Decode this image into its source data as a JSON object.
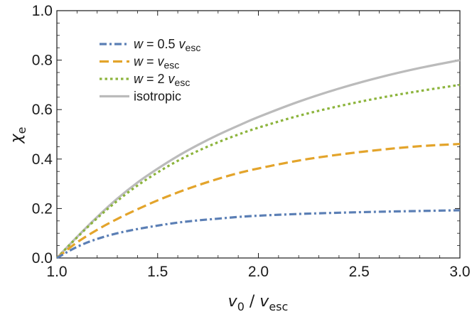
{
  "chart_data": {
    "type": "line",
    "xlabel": {
      "main": "v",
      "sub0": "0",
      "sep": " / ",
      "main2": "v",
      "sub2": "esc"
    },
    "ylabel": {
      "main": "χ",
      "sub": "e"
    },
    "xlim": [
      1.0,
      3.0
    ],
    "ylim": [
      0.0,
      1.0
    ],
    "xticks": [
      "1.0",
      "1.5",
      "2.0",
      "2.5",
      "3.0"
    ],
    "yticks": [
      "0.0",
      "0.2",
      "0.4",
      "0.6",
      "0.8",
      "1.0"
    ],
    "grid": false,
    "legend_position": "top-left",
    "series": [
      {
        "name": "w = 0.5 vesc",
        "legend": {
          "var": "w",
          "mid": " = 0.5 ",
          "v": "v",
          "sub": "esc"
        },
        "color": "#5b7fb5",
        "dash": "dashdot",
        "x": [
          1.0,
          1.1,
          1.2,
          1.3,
          1.4,
          1.5,
          1.6,
          1.7,
          1.8,
          1.9,
          2.0,
          2.2,
          2.4,
          2.6,
          2.8,
          3.0
        ],
        "y": [
          0.0,
          0.045,
          0.077,
          0.1,
          0.117,
          0.131,
          0.143,
          0.152,
          0.159,
          0.166,
          0.171,
          0.178,
          0.183,
          0.187,
          0.19,
          0.193
        ]
      },
      {
        "name": "w = vesc",
        "legend": {
          "var": "w",
          "mid": " = ",
          "v": "v",
          "sub": "esc"
        },
        "color": "#e3a42b",
        "dash": "dashed",
        "x": [
          1.0,
          1.1,
          1.2,
          1.3,
          1.4,
          1.5,
          1.6,
          1.7,
          1.8,
          1.9,
          2.0,
          2.2,
          2.4,
          2.6,
          2.8,
          3.0
        ],
        "y": [
          0.0,
          0.063,
          0.114,
          0.158,
          0.197,
          0.233,
          0.265,
          0.294,
          0.32,
          0.343,
          0.362,
          0.394,
          0.418,
          0.437,
          0.452,
          0.461
        ]
      },
      {
        "name": "w = 2 vesc",
        "legend": {
          "var": "w",
          "mid": " = 2 ",
          "v": "v",
          "sub": "esc"
        },
        "color": "#8cb43c",
        "dash": "dotted",
        "x": [
          1.0,
          1.1,
          1.2,
          1.3,
          1.4,
          1.5,
          1.6,
          1.7,
          1.8,
          1.9,
          2.0,
          2.2,
          2.4,
          2.6,
          2.8,
          3.0
        ],
        "y": [
          0.0,
          0.083,
          0.161,
          0.231,
          0.293,
          0.346,
          0.393,
          0.433,
          0.468,
          0.499,
          0.527,
          0.575,
          0.614,
          0.647,
          0.675,
          0.7
        ]
      },
      {
        "name": "isotropic",
        "legend": {
          "var": "",
          "mid": "isotropic",
          "v": "",
          "sub": ""
        },
        "color": "#bbbbbb",
        "dash": "solid",
        "x": [
          1.0,
          1.1,
          1.2,
          1.3,
          1.4,
          1.5,
          1.6,
          1.7,
          1.8,
          1.9,
          2.0,
          2.2,
          2.4,
          2.6,
          2.8,
          3.0
        ],
        "y": [
          0.0,
          0.085,
          0.166,
          0.24,
          0.305,
          0.361,
          0.412,
          0.457,
          0.498,
          0.535,
          0.57,
          0.632,
          0.685,
          0.73,
          0.768,
          0.8
        ]
      }
    ]
  }
}
